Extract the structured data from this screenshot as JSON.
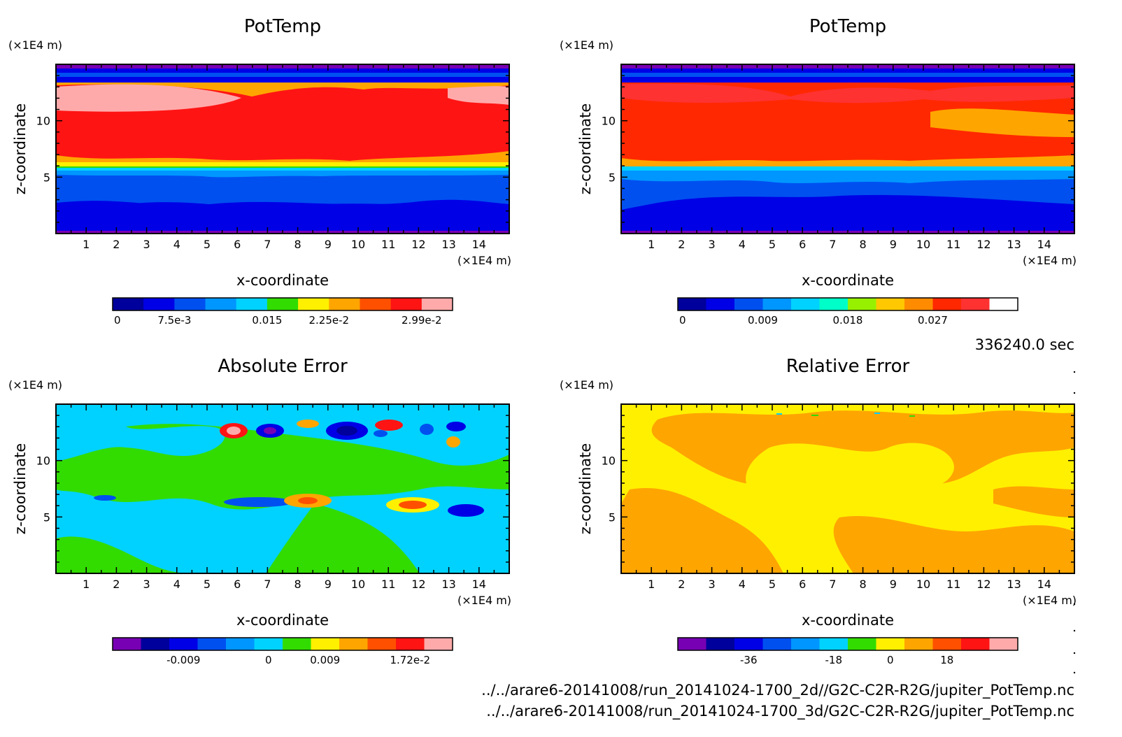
{
  "colors": {
    "rainbow_11": [
      "#00009c",
      "#0000e6",
      "#0050f0",
      "#0096ff",
      "#00d2ff",
      "#32dc00",
      "#fff000",
      "#ffa500",
      "#ff5000",
      "#ff1414",
      "#ffaaaa"
    ],
    "abs_err_12": [
      "#7800b4",
      "#00009c",
      "#0000e6",
      "#0050f0",
      "#0096ff",
      "#00d2ff",
      "#32dc00",
      "#fff000",
      "#ffa500",
      "#ff5000",
      "#ff1414",
      "#ffaaaa"
    ],
    "pot_right": [
      "#00009c",
      "#0000e6",
      "#0050f0",
      "#0096ff",
      "#00d2ff",
      "#00ffc8",
      "#96f000",
      "#ffc800",
      "#ff8c00",
      "#ff2800",
      "#ff3232",
      "#ffffff"
    ]
  },
  "footer": {
    "time_label": "336240.0 sec",
    "file1": "../../arare6-20141008/run_20141024-1700_2d//G2C-C2R-R2G/jupiter_PotTemp.nc",
    "file2": "../../arare6-20141008/run_20141024-1700_3d/G2C-C2R-R2G/jupiter_PotTemp.nc"
  },
  "chart_data": [
    {
      "type": "heatmap",
      "title": "PotTemp",
      "xlabel": "x-coordinate",
      "ylabel": "z-coordinate",
      "x_unit": "(×1E4 m)",
      "y_unit": "(×1E4 m)",
      "xlim": [
        0,
        15
      ],
      "ylim": [
        0,
        15
      ],
      "x_ticks": [
        "1",
        "2",
        "3",
        "4",
        "5",
        "6",
        "7",
        "8",
        "9",
        "10",
        "11",
        "12",
        "13",
        "14"
      ],
      "y_ticks": [
        "5",
        "10"
      ],
      "colorbar": {
        "labels": [
          "0",
          "7.5e-3",
          "0.015",
          "2.25e-2",
          "2.99e-2"
        ],
        "palette": "rainbow_11"
      }
    },
    {
      "type": "heatmap",
      "title": "PotTemp",
      "xlabel": "x-coordinate",
      "ylabel": "z-coordinate",
      "x_unit": "(×1E4 m)",
      "y_unit": "(×1E4 m)",
      "xlim": [
        0,
        15
      ],
      "ylim": [
        0,
        15
      ],
      "x_ticks": [
        "1",
        "2",
        "3",
        "4",
        "5",
        "6",
        "7",
        "8",
        "9",
        "10",
        "11",
        "12",
        "13",
        "14"
      ],
      "y_ticks": [
        "5",
        "10"
      ],
      "colorbar": {
        "labels": [
          "0",
          "0.009",
          "0.018",
          "0.027"
        ],
        "palette": "pot_right"
      }
    },
    {
      "type": "heatmap",
      "title": "Absolute Error",
      "xlabel": "x-coordinate",
      "ylabel": "z-coordinate",
      "x_unit": "(×1E4 m)",
      "y_unit": "(×1E4 m)",
      "xlim": [
        0,
        15
      ],
      "ylim": [
        0,
        15
      ],
      "x_ticks": [
        "1",
        "2",
        "3",
        "4",
        "5",
        "6",
        "7",
        "8",
        "9",
        "10",
        "11",
        "12",
        "13",
        "14"
      ],
      "y_ticks": [
        "5",
        "10"
      ],
      "colorbar": {
        "labels": [
          "-0.009",
          "0",
          "0.009",
          "1.72e-2"
        ],
        "palette": "abs_err_12"
      }
    },
    {
      "type": "heatmap",
      "title": "Relative Error",
      "xlabel": "x-coordinate",
      "ylabel": "z-coordinate",
      "x_unit": "(×1E4 m)",
      "y_unit": "(×1E4 m)",
      "xlim": [
        0,
        15
      ],
      "ylim": [
        0,
        15
      ],
      "x_ticks": [
        "1",
        "2",
        "3",
        "4",
        "5",
        "6",
        "7",
        "8",
        "9",
        "10",
        "11",
        "12",
        "13",
        "14"
      ],
      "y_ticks": [
        "5",
        "10"
      ],
      "colorbar": {
        "labels": [
          "-36",
          "-18",
          "0",
          "18"
        ],
        "palette": "abs_err_12"
      }
    }
  ]
}
